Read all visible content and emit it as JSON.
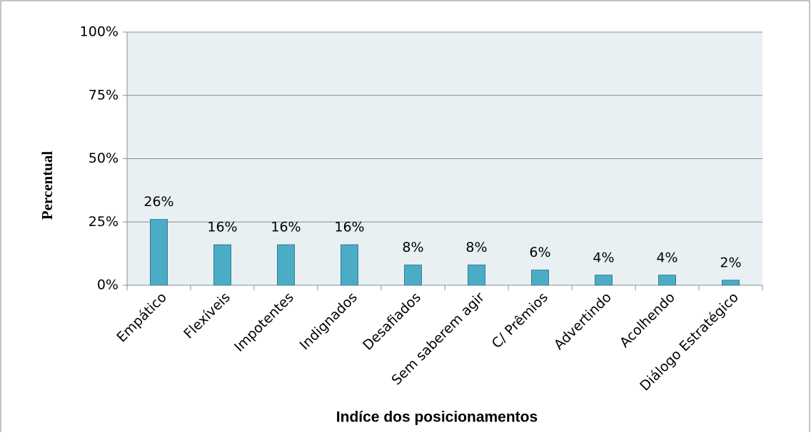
{
  "chart_data": {
    "type": "bar",
    "x_label": "Indíce dos posicionamentos",
    "y_label": "Percentual",
    "categories": [
      "Empático",
      "Flexíveis",
      "Impotentes",
      "Indignados",
      "Desafiados",
      "Sem saberem agir",
      "C/ Prêmios",
      "Advertindo",
      "Acolhendo",
      "Diálogo Estratégico"
    ],
    "values": [
      26,
      16,
      16,
      16,
      8,
      8,
      6,
      4,
      4,
      2
    ],
    "value_labels": [
      "26%",
      "16%",
      "16%",
      "16%",
      "8%",
      "8%",
      "6%",
      "4%",
      "4%",
      "2%"
    ],
    "color": "#4bacc6",
    "ylim": [
      0,
      100
    ],
    "yticks": [
      {
        "value": 0,
        "label": "0%"
      },
      {
        "value": 25,
        "label": "25%"
      },
      {
        "value": 50,
        "label": "50%"
      },
      {
        "value": 75,
        "label": "75%"
      },
      {
        "value": 100,
        "label": "100%"
      }
    ],
    "grid": true
  }
}
